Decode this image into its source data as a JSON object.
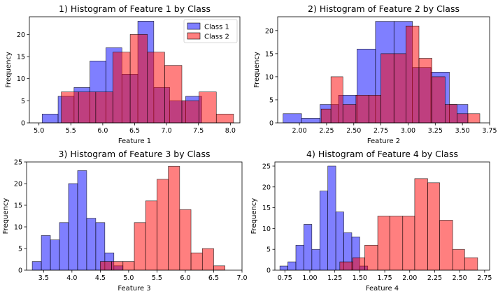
{
  "chart_data": [
    {
      "type": "histogram",
      "title": "1) Histogram of Feature 1 by Class",
      "xlabel": "Feature 1",
      "ylabel": "Frequency",
      "xlim": [
        4.85,
        8.15
      ],
      "ylim": [
        0,
        24
      ],
      "xticks": [
        5.0,
        5.5,
        6.0,
        6.5,
        7.0,
        7.5,
        8.0
      ],
      "yticks": [
        0,
        5,
        10,
        15,
        20
      ],
      "legend": {
        "placement": "top-right",
        "entries": [
          "Class 1",
          "Class 2"
        ]
      },
      "series": [
        {
          "name": "Class 1",
          "color": "#0000ff",
          "edges": [
            5.05,
            5.3,
            5.55,
            5.8,
            6.05,
            6.3,
            6.55,
            6.8,
            7.05,
            7.3,
            7.55
          ],
          "counts": [
            2,
            6,
            8,
            14,
            17,
            11,
            23,
            8,
            5,
            6
          ]
        },
        {
          "name": "Class 2",
          "color": "#ff0000",
          "edges": [
            5.35,
            5.62,
            5.89,
            6.16,
            6.43,
            6.7,
            6.97,
            7.24,
            7.51,
            7.78,
            8.05
          ],
          "counts": [
            7,
            7,
            7,
            16,
            20,
            16,
            13,
            5,
            7,
            2
          ]
        }
      ]
    },
    {
      "type": "histogram",
      "title": "2) Histogram of Feature 2 by Class",
      "xlabel": "Feature 2",
      "ylabel": "Frequency",
      "xlim": [
        1.8,
        3.75
      ],
      "ylim": [
        0,
        23
      ],
      "xticks": [
        2.0,
        2.25,
        2.5,
        2.75,
        3.0,
        3.25,
        3.5,
        3.75
      ],
      "yticks": [
        0,
        5,
        10,
        15,
        20
      ],
      "series": [
        {
          "name": "Class 1",
          "color": "#0000ff",
          "edges": [
            1.85,
            2.02,
            2.19,
            2.36,
            2.53,
            2.7,
            2.87,
            3.04,
            3.21,
            3.38,
            3.55
          ],
          "counts": [
            2,
            1,
            4,
            6,
            16,
            22,
            22,
            12,
            11,
            4
          ]
        },
        {
          "name": "Class 2",
          "color": "#ff0000",
          "edges": [
            2.2,
            2.29,
            2.4,
            2.52,
            2.64,
            2.75,
            2.87,
            2.98,
            3.1,
            3.22,
            3.34,
            3.45,
            3.55,
            3.66
          ],
          "counts": [
            3,
            10,
            4,
            6,
            6,
            15,
            15,
            21,
            14,
            10,
            4,
            2,
            2
          ]
        }
      ]
    },
    {
      "type": "histogram",
      "title": "3) Histogram of Feature 3 by Class",
      "xlabel": "Feature 3",
      "ylabel": "Frequency",
      "xlim": [
        3.2,
        7.0
      ],
      "ylim": [
        0,
        25
      ],
      "xticks": [
        3.5,
        4.0,
        4.5,
        5.0,
        5.5,
        6.0,
        6.5,
        7.0
      ],
      "yticks": [
        0,
        5,
        10,
        15,
        20,
        25
      ],
      "series": [
        {
          "name": "Class 1",
          "color": "#0000ff",
          "edges": [
            3.3,
            3.46,
            3.62,
            3.78,
            3.94,
            4.1,
            4.26,
            4.42,
            4.58,
            4.74,
            4.9
          ],
          "counts": [
            2,
            8,
            7,
            11,
            20,
            23,
            12,
            11,
            4,
            1
          ]
        },
        {
          "name": "Class 2",
          "color": "#ff0000",
          "edges": [
            4.5,
            4.7,
            4.9,
            5.1,
            5.3,
            5.5,
            5.7,
            5.9,
            6.1,
            6.3,
            6.5,
            6.7,
            6.9
          ],
          "counts": [
            2,
            2,
            2,
            11,
            16,
            21,
            24,
            14,
            4,
            5,
            1,
            0
          ]
        }
      ]
    },
    {
      "type": "histogram",
      "title": "4) Histogram of Feature 4 by Class",
      "xlabel": "Feature 4",
      "ylabel": "Frequency",
      "xlim": [
        0.65,
        2.8
      ],
      "ylim": [
        0,
        26
      ],
      "xticks": [
        0.75,
        1.0,
        1.25,
        1.5,
        1.75,
        2.0,
        2.25,
        2.5,
        2.75
      ],
      "yticks": [
        0,
        5,
        10,
        15,
        20,
        25
      ],
      "series": [
        {
          "name": "Class 1",
          "color": "#0000ff",
          "edges": [
            0.7,
            0.78,
            0.86,
            0.94,
            1.02,
            1.1,
            1.18,
            1.26,
            1.34,
            1.42,
            1.5,
            1.58,
            1.66
          ],
          "counts": [
            1,
            2,
            6,
            11,
            5,
            19,
            25,
            14,
            9,
            8,
            1,
            0
          ]
        },
        {
          "name": "Class 2",
          "color": "#ff0000",
          "edges": [
            1.3,
            1.43,
            1.55,
            1.68,
            1.8,
            1.93,
            2.05,
            2.18,
            2.3,
            2.43,
            2.55,
            2.68
          ],
          "counts": [
            2,
            3,
            6,
            13,
            13,
            13,
            22,
            21,
            12,
            5,
            3
          ]
        }
      ]
    }
  ]
}
